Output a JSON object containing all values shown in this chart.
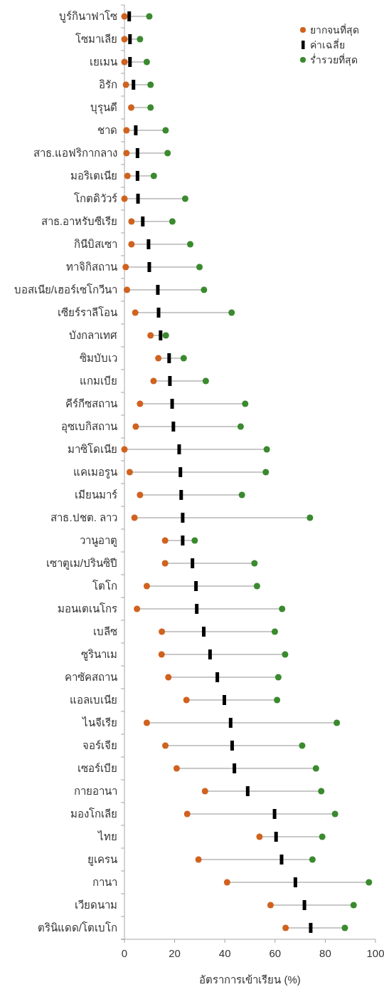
{
  "chart_data": {
    "type": "scatter",
    "orientation": "horizontal",
    "xlabel": "อัตราการเข้าเรียน (%)",
    "xlim": [
      0,
      100
    ],
    "xticks": [
      0,
      20,
      40,
      60,
      80,
      100
    ],
    "grid": false,
    "legend": "top right",
    "categories": [
      "บูร์กินาฟาโซ",
      "โซมาเลีย",
      "เยเมน",
      "อิรัก",
      "บุรุนดี",
      "ชาด",
      "สาธ.แอฟริกากลาง",
      "มอริเตเนีย",
      "โกตดิวัวร์",
      "สาธ.อาหรับซีเรีย",
      "กินีบิสเซา",
      "ทาจิกิสถาน",
      "บอสเนีย/เฮอร์เซโกวีนา",
      "เซียร์ราลีโอน",
      "บังกลาเทศ",
      "ซิมบับเว",
      "แกมเบีย",
      "คีร์กีซสถาน",
      "อุซเบกิสถาน",
      "มาซิโดเนีย",
      "แคเมอรูน",
      "เมียนมาร์",
      "สาธ.ปชต. ลาว",
      "วานูอาตู",
      "เซาตูเม/ปรินซิปี",
      "โตโก",
      "มอนเตเนโกร",
      "เบลีซ",
      "ซูรินาเม",
      "คาซัคสถาน",
      "แอลเบเนีย",
      "ไนจีเรีย",
      "จอร์เจีย",
      "เซอร์เบีย",
      "กายอานา",
      "มองโกเลีย",
      "ไทย",
      "ยูเครน",
      "กานา",
      "เวียดนาม",
      "ตรินิแดด/โตเบโก"
    ],
    "series": [
      {
        "name": "ยากจนที่สุด",
        "color": "#d0621f",
        "marker": "circle",
        "values": [
          0,
          0,
          0,
          0.6,
          2.7,
          0.8,
          0.8,
          1.2,
          0,
          2.8,
          2.8,
          0.5,
          1,
          4.3,
          10.4,
          13.5,
          11.6,
          6.2,
          4.5,
          0,
          2.1,
          6.2,
          4,
          16.2,
          16.2,
          8.9,
          5,
          14.9,
          14.8,
          17.5,
          24.7,
          8.9,
          16.3,
          20.8,
          32.1,
          25,
          53.8,
          29.5,
          40.9,
          58.2,
          64.2
        ]
      },
      {
        "name": "ค่าเฉลี่ย",
        "color": "#000000",
        "values": [
          1.9,
          2.2,
          2.2,
          3.6,
          null,
          4.5,
          5.2,
          5.2,
          5.4,
          7.3,
          9.6,
          9.9,
          13.3,
          13.6,
          14.4,
          17.8,
          18.1,
          19,
          19.5,
          21.8,
          22.3,
          22.6,
          23.2,
          23.2,
          27.1,
          28.5,
          28.8,
          31.6,
          34.1,
          37,
          39.8,
          42.3,
          42.9,
          43.8,
          49.1,
          59.8,
          60.4,
          62.6,
          68.1,
          71.7,
          74.2
        ]
      },
      {
        "name": "ร่ำรวยที่สุด",
        "color": "#3a8a2e",
        "marker": "circle",
        "values": [
          9.9,
          6.2,
          8.9,
          10.4,
          10.4,
          16.4,
          17.2,
          11.7,
          24.2,
          19.1,
          26.2,
          29.9,
          31.7,
          42.7,
          16.5,
          23.6,
          32.4,
          48.1,
          46.3,
          56.7,
          56.3,
          46.8,
          73.9,
          28,
          51.8,
          52.8,
          62.8,
          59.9,
          64,
          61.3,
          60.8,
          84.6,
          70.8,
          76.3,
          78.4,
          83.9,
          78.8,
          74.9,
          97.4,
          91.3,
          87.8
        ]
      }
    ]
  }
}
